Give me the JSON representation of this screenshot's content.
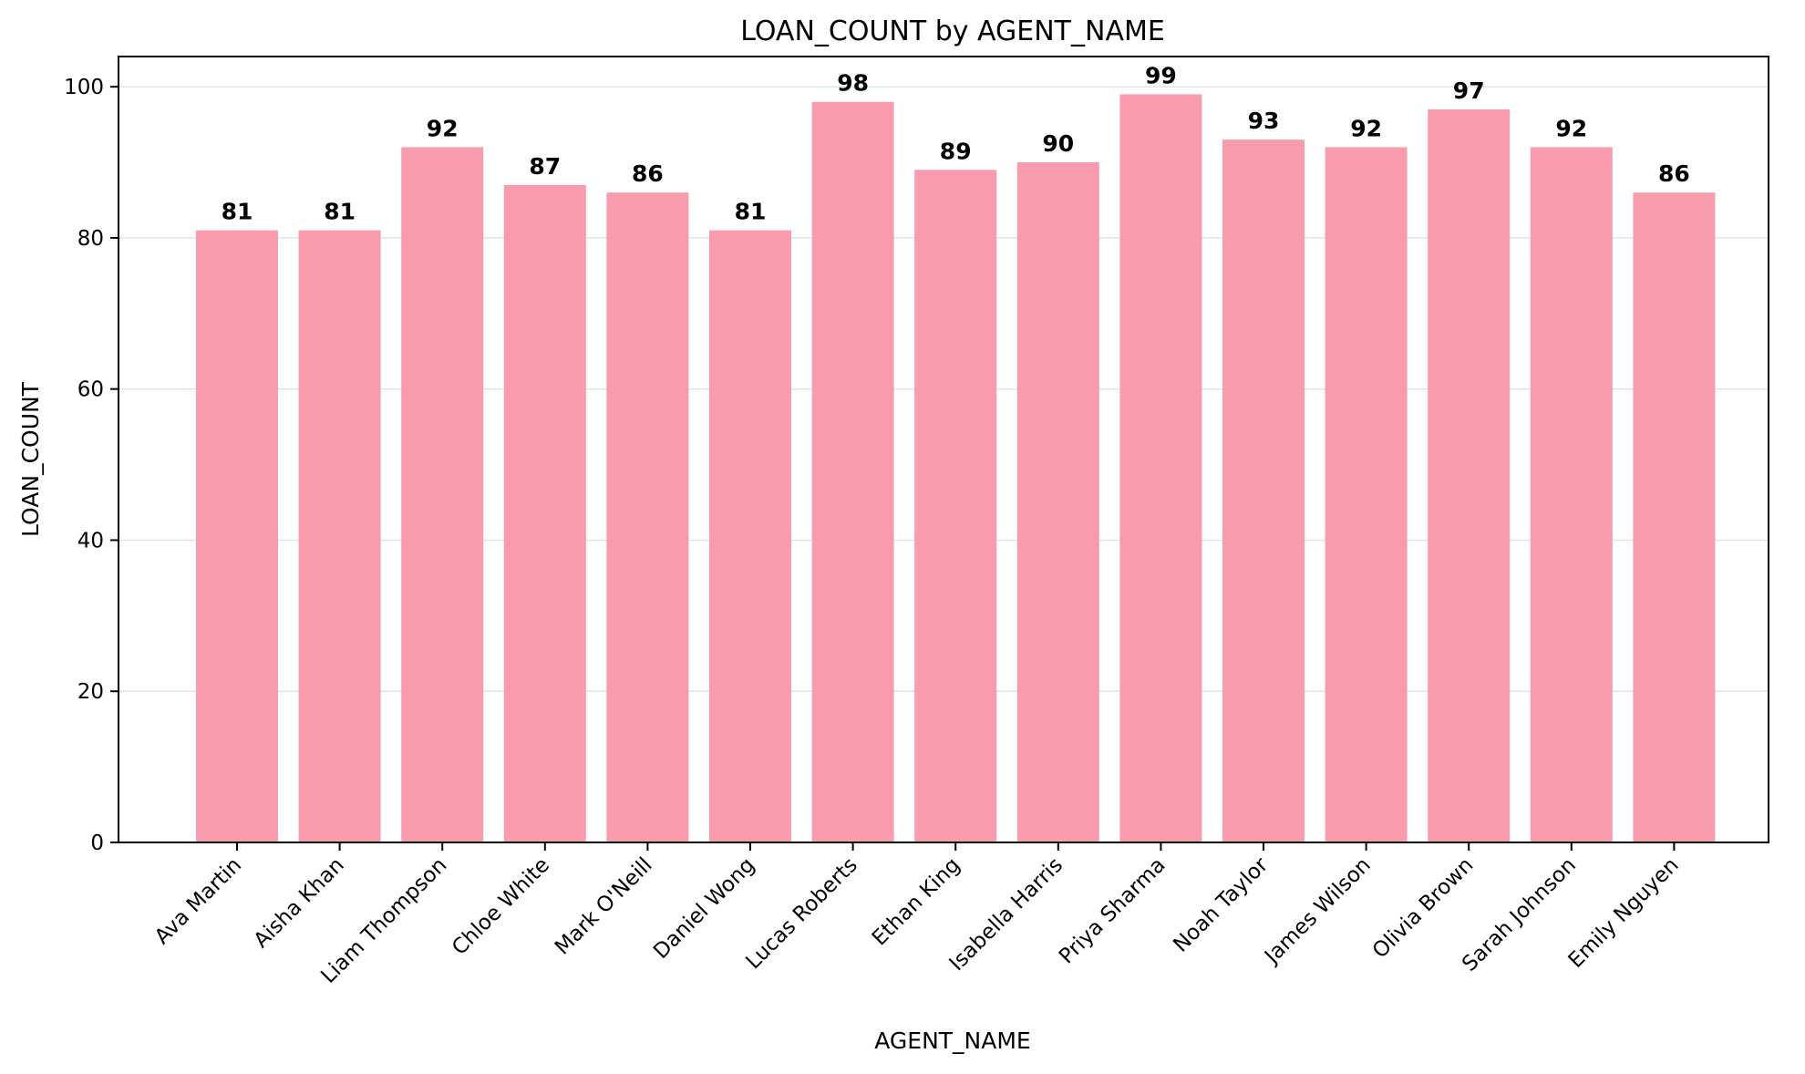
{
  "chart_data": {
    "type": "bar",
    "title": "LOAN_COUNT by AGENT_NAME",
    "xlabel": "AGENT_NAME",
    "ylabel": "LOAN_COUNT",
    "categories": [
      "Ava Martin",
      "Aisha Khan",
      "Liam Thompson",
      "Chloe White",
      "Mark O'Neill",
      "Daniel Wong",
      "Lucas Roberts",
      "Ethan King",
      "Isabella Harris",
      "Priya Sharma",
      "Noah Taylor",
      "James Wilson",
      "Olivia Brown",
      "Sarah Johnson",
      "Emily Nguyen"
    ],
    "values": [
      81,
      81,
      92,
      87,
      86,
      81,
      98,
      89,
      90,
      99,
      93,
      92,
      97,
      92,
      86
    ],
    "ylim": [
      0,
      104
    ],
    "yticks": [
      0,
      20,
      40,
      60,
      80,
      100
    ],
    "grid": "horizontal",
    "bar_color": "#f89bad"
  }
}
